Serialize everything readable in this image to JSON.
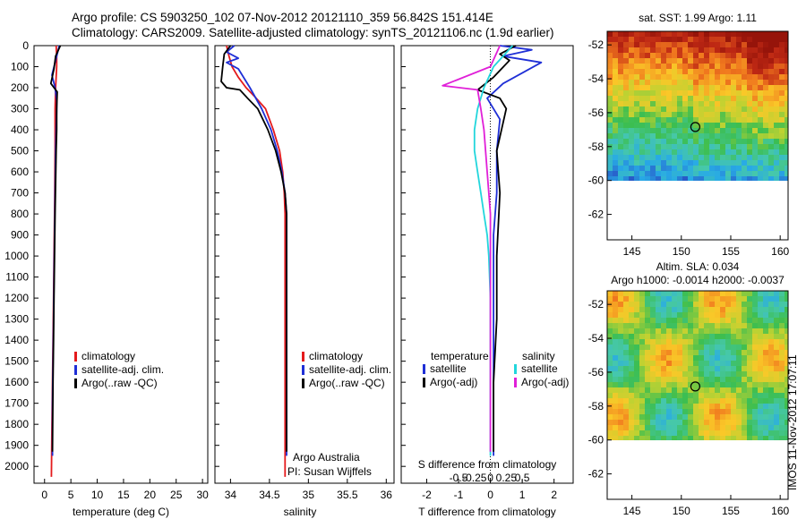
{
  "header": {
    "line1": "Argo profile: CS 5903250_102 07-Nov-2012 20121110_359 56.842S 151.414E",
    "line2": "Climatology: CARS2009. Satellite-adjusted climatology: synTS_20121106.nc (1.9d earlier)"
  },
  "side_label": "IMOS 11-Nov-2012 17:07:11",
  "colors": {
    "climatology": "#e41a1c",
    "satellite": "#1f2fd6",
    "argo": "#000000",
    "sat_diff_s": "#22d6dc",
    "argo_adj_t": "#000000",
    "argo_adj_s": "#e020d8"
  },
  "chart_data": [
    {
      "type": "line",
      "name": "temperature",
      "xlabel": "temperature (deg C)",
      "xlim": [
        -2,
        31
      ],
      "ylim": [
        2080,
        0
      ],
      "xticks": [
        0,
        5,
        10,
        15,
        20,
        25,
        30
      ],
      "yticks": [
        0,
        100,
        200,
        300,
        400,
        500,
        600,
        700,
        800,
        900,
        1000,
        1100,
        1200,
        1300,
        1400,
        1500,
        1600,
        1700,
        1800,
        1900,
        2000
      ],
      "legend": [
        "climatology",
        "satellite-adj. clim.",
        "Argo(..raw -QC)"
      ],
      "series": [
        {
          "name": "climatology",
          "color_key": "climatology",
          "x": [
            2.2,
            2.3,
            2.3,
            2.1,
            2.0,
            2.0,
            1.9,
            1.8,
            1.7,
            1.6,
            1.5,
            1.4,
            1.3
          ],
          "y": [
            0,
            50,
            100,
            200,
            300,
            500,
            800,
            1000,
            1200,
            1400,
            1600,
            1800,
            2050
          ]
        },
        {
          "name": "satellite-adj. clim.",
          "color_key": "satellite",
          "x": [
            2.8,
            2.2,
            1.4,
            2.0,
            2.3,
            2.3,
            2.2,
            2.1,
            2.0,
            1.9,
            1.8,
            1.7,
            1.6,
            1.5,
            1.5
          ],
          "y": [
            0,
            60,
            140,
            200,
            260,
            300,
            400,
            500,
            700,
            900,
            1100,
            1300,
            1500,
            1700,
            1950
          ]
        },
        {
          "name": "Argo(..raw -QC)",
          "color_key": "argo",
          "x": [
            3.0,
            2.1,
            1.8,
            1.2,
            2.4,
            2.3,
            2.3,
            2.2,
            2.0,
            1.9,
            1.8,
            1.7,
            1.6,
            1.5
          ],
          "y": [
            0,
            50,
            110,
            180,
            220,
            300,
            400,
            500,
            800,
            1000,
            1200,
            1400,
            1600,
            1930
          ]
        }
      ]
    },
    {
      "type": "line",
      "name": "salinity",
      "xlabel": "salinity",
      "xlim": [
        33.8,
        36.1
      ],
      "ylim": [
        2080,
        0
      ],
      "xticks": [
        34,
        34.5,
        35,
        35.5,
        36
      ],
      "legend": [
        "climatology",
        "satellite-adj. clim.",
        "Argo(..raw -QC)"
      ],
      "annotation": [
        "Argo Australia",
        "PI: Susan Wijffels"
      ],
      "series": [
        {
          "name": "climatology",
          "color_key": "climatology",
          "x": [
            33.95,
            33.98,
            34.02,
            34.1,
            34.2,
            34.33,
            34.45,
            34.55,
            34.63,
            34.67,
            34.69,
            34.7,
            34.7,
            34.7,
            34.7
          ],
          "y": [
            0,
            50,
            100,
            150,
            200,
            250,
            300,
            400,
            500,
            600,
            700,
            800,
            1000,
            1500,
            2050
          ]
        },
        {
          "name": "satellite-adj. clim.",
          "color_key": "satellite",
          "x": [
            34.05,
            33.95,
            34.1,
            33.95,
            34.1,
            34.25,
            34.4,
            34.52,
            34.6,
            34.66,
            34.7,
            34.72,
            34.72,
            34.72
          ],
          "y": [
            0,
            30,
            60,
            80,
            110,
            200,
            300,
            400,
            500,
            600,
            700,
            800,
            1200,
            1950
          ]
        },
        {
          "name": "Argo(..raw -QC)",
          "color_key": "argo",
          "x": [
            34.0,
            33.92,
            33.9,
            33.88,
            33.95,
            34.12,
            34.22,
            34.35,
            34.48,
            34.58,
            34.65,
            34.7,
            34.72,
            34.72,
            34.72
          ],
          "y": [
            0,
            40,
            100,
            170,
            200,
            210,
            250,
            300,
            400,
            500,
            600,
            700,
            800,
            1200,
            1930
          ]
        }
      ]
    },
    {
      "type": "line",
      "name": "difference",
      "xlabel": "T difference from climatology",
      "xlabel_top": "S difference from climatology",
      "xlim": [
        -2.8,
        2.6
      ],
      "ylim": [
        2080,
        0
      ],
      "xticks": [
        -2,
        -1,
        0,
        1,
        2
      ],
      "xticks_s": [
        -0.5,
        -0.25,
        0,
        0.25,
        0.5
      ],
      "legend_groups": [
        "temperature",
        "salinity"
      ],
      "legend_t": [
        "satellite",
        "Argo(-adj)"
      ],
      "legend_s": [
        "satellite",
        "Argo(-adj)"
      ],
      "series": [
        {
          "name": "satellite T",
          "color_key": "satellite",
          "x": [
            0.3,
            1.3,
            0.4,
            1.6,
            0.4,
            -0.1,
            0.3,
            0.2,
            0.2,
            0.1,
            0.1,
            0.1,
            0.1
          ],
          "y": [
            0,
            20,
            50,
            80,
            180,
            250,
            350,
            500,
            700,
            900,
            1200,
            1500,
            1950
          ]
        },
        {
          "name": "Argo(-adj) T",
          "color_key": "argo_adj_t",
          "x": [
            0.8,
            0.3,
            0.6,
            0.1,
            -0.4,
            0.3,
            0.5,
            0.2,
            0.3,
            0.2,
            0.2,
            0.1,
            0.1
          ],
          "y": [
            0,
            40,
            70,
            150,
            210,
            250,
            300,
            500,
            700,
            1000,
            1300,
            1600,
            1930
          ]
        },
        {
          "name": "satellite S",
          "color_key": "sat_diff_s",
          "x": [
            0.7,
            0.1,
            -0.2,
            -0.4,
            -0.5,
            -0.5,
            -0.4,
            -0.3,
            -0.2,
            -0.1,
            -0.05,
            0.0,
            0.0
          ],
          "y": [
            0,
            100,
            200,
            300,
            400,
            500,
            600,
            700,
            800,
            900,
            1000,
            1200,
            1950
          ]
        },
        {
          "name": "Argo(-adj) S",
          "color_key": "argo_adj_s",
          "x": [
            0.3,
            0.0,
            -1.5,
            -0.4,
            -0.3,
            -0.2,
            -0.1,
            0.0,
            0.0,
            0.0
          ],
          "y": [
            0,
            100,
            190,
            210,
            300,
            400,
            600,
            800,
            1200,
            1930
          ]
        }
      ]
    },
    {
      "type": "heatmap",
      "name": "sst-map",
      "title": "sat. SST: 1.99 Argo: 1.11",
      "xticks": [
        145,
        150,
        155,
        160
      ],
      "yticks": [
        -52,
        -54,
        -56,
        -58,
        -60,
        -62
      ],
      "xlim": [
        142.5,
        160.8
      ],
      "ylim": [
        -63.5,
        -51.2
      ],
      "data_ylim": [
        -60,
        -51.2
      ],
      "marker": [
        151.414,
        -56.842
      ]
    },
    {
      "type": "heatmap",
      "name": "sla-map",
      "title": "Altim. SLA: 0.034",
      "subtitle": "Argo h1000: -0.0014 h2000: -0.0037",
      "xticks": [
        145,
        150,
        155,
        160
      ],
      "yticks": [
        -52,
        -54,
        -56,
        -58,
        -60,
        -62
      ],
      "xlim": [
        142.5,
        160.8
      ],
      "ylim": [
        -63.5,
        -51.2
      ],
      "data_ylim": [
        -60,
        -51.2
      ],
      "marker": [
        151.414,
        -56.842
      ]
    }
  ]
}
